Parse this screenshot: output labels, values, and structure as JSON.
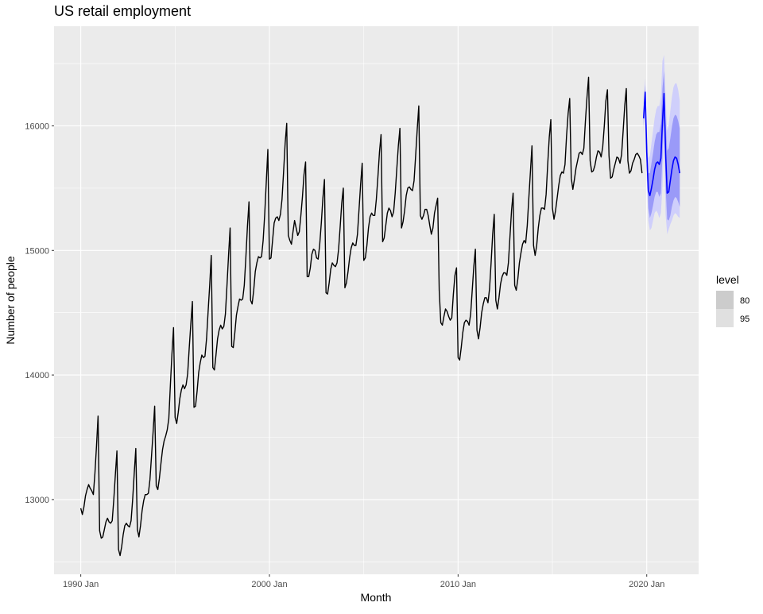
{
  "chart_data": {
    "type": "line",
    "title": "US retail employment",
    "xlabel": "Month",
    "ylabel": "Number of people",
    "x_range": [
      "1988-08",
      "2022-10"
    ],
    "ylim": [
      12400,
      16800
    ],
    "x_ticks": [
      "1990 Jan",
      "2000 Jan",
      "2010 Jan",
      "2020 Jan"
    ],
    "y_ticks": [
      13000,
      14000,
      15000,
      16000
    ],
    "grid": true,
    "legend": {
      "title": "level",
      "position": "right",
      "entries": [
        {
          "label": "80",
          "color": "#cccccc"
        },
        {
          "label": "95",
          "color": "#e0e0e0"
        }
      ]
    },
    "colors": {
      "panel": "#ebebeb",
      "grid": "#ffffff",
      "history_line": "#000000",
      "forecast_line": "#0000ff",
      "interval_80": "#9a9af8",
      "interval_95": "#cfcffb"
    },
    "history_start": "1990-01",
    "series": [
      {
        "values": [
          12930,
          12880,
          12940,
          13030,
          13080,
          13120,
          13090,
          13070,
          13040,
          13210,
          13430,
          13670,
          12750,
          12690,
          12700,
          12760,
          12820,
          12850,
          12820,
          12810,
          12830,
          13000,
          13200,
          13390,
          12600,
          12550,
          12620,
          12720,
          12790,
          12810,
          12790,
          12780,
          12830,
          13000,
          13210,
          13410,
          12760,
          12700,
          12790,
          12910,
          12990,
          13040,
          13040,
          13050,
          13160,
          13350,
          13540,
          13750,
          13110,
          13080,
          13170,
          13290,
          13400,
          13470,
          13510,
          13560,
          13650,
          13920,
          14170,
          14380,
          13660,
          13610,
          13700,
          13810,
          13880,
          13920,
          13890,
          13920,
          14010,
          14220,
          14410,
          14590,
          13740,
          13750,
          13870,
          14020,
          14100,
          14160,
          14140,
          14150,
          14290,
          14510,
          14720,
          14960,
          14060,
          14040,
          14160,
          14290,
          14360,
          14400,
          14370,
          14390,
          14490,
          14720,
          14960,
          15180,
          14230,
          14220,
          14340,
          14480,
          14550,
          14610,
          14600,
          14610,
          14720,
          14940,
          15190,
          15390,
          14600,
          14570,
          14680,
          14830,
          14900,
          14950,
          14940,
          14950,
          15080,
          15290,
          15550,
          15810,
          14930,
          14940,
          15080,
          15220,
          15260,
          15270,
          15240,
          15290,
          15410,
          15630,
          15860,
          16020,
          15120,
          15080,
          15050,
          15150,
          15240,
          15180,
          15120,
          15150,
          15280,
          15430,
          15610,
          15710,
          14790,
          14790,
          14860,
          14970,
          15010,
          15000,
          14940,
          14930,
          15050,
          15220,
          15420,
          15570,
          14660,
          14650,
          14740,
          14850,
          14900,
          14880,
          14870,
          14900,
          15010,
          15190,
          15380,
          15500,
          14700,
          14740,
          14830,
          14940,
          15020,
          15060,
          15040,
          15040,
          15130,
          15330,
          15530,
          15700,
          14920,
          14940,
          15040,
          15180,
          15270,
          15300,
          15280,
          15280,
          15410,
          15590,
          15790,
          15930,
          15070,
          15100,
          15200,
          15300,
          15340,
          15320,
          15270,
          15310,
          15460,
          15650,
          15840,
          15980,
          15180,
          15230,
          15320,
          15440,
          15500,
          15510,
          15490,
          15480,
          15560,
          15760,
          15970,
          16160,
          15280,
          15250,
          15280,
          15330,
          15330,
          15280,
          15200,
          15130,
          15180,
          15300,
          15360,
          15420,
          14680,
          14420,
          14400,
          14470,
          14530,
          14510,
          14470,
          14440,
          14460,
          14650,
          14800,
          14860,
          14140,
          14120,
          14220,
          14340,
          14420,
          14440,
          14430,
          14400,
          14490,
          14680,
          14870,
          15010,
          14360,
          14290,
          14380,
          14500,
          14570,
          14620,
          14620,
          14580,
          14690,
          14900,
          15130,
          15290,
          14600,
          14530,
          14620,
          14730,
          14790,
          14820,
          14820,
          14800,
          14900,
          15110,
          15320,
          15460,
          14720,
          14680,
          14770,
          14900,
          14980,
          15050,
          15080,
          15060,
          15200,
          15420,
          15630,
          15840,
          15040,
          14960,
          15040,
          15180,
          15280,
          15340,
          15340,
          15330,
          15450,
          15690,
          15910,
          16050,
          15340,
          15250,
          15320,
          15420,
          15520,
          15600,
          15630,
          15620,
          15690,
          15920,
          16100,
          16220,
          15580,
          15490,
          15570,
          15660,
          15720,
          15780,
          15790,
          15770,
          15820,
          16040,
          16230,
          16390,
          15720,
          15630,
          15640,
          15680,
          15750,
          15800,
          15790,
          15750,
          15830,
          16000,
          16200,
          16290,
          15760,
          15580,
          15590,
          15650,
          15700,
          15750,
          15740,
          15700,
          15770,
          15960,
          16160,
          16300,
          15720,
          15620,
          15640,
          15700,
          15730,
          15770,
          15780,
          15760,
          15730,
          15620
        ]
      },
      {
        "start": "2019-11",
        "values": [
          16060,
          16270,
          15790,
          15480,
          15440,
          15500,
          15570,
          15650,
          15700,
          15710,
          15690,
          15740,
          16030,
          16260,
          15780,
          15460,
          15470,
          15560,
          15650,
          15720,
          15750,
          15740,
          15690,
          15620
        ],
        "interval_95_upper": [
          16180,
          16380,
          16000,
          15740,
          15760,
          15860,
          15960,
          16060,
          16130,
          16160,
          16160,
          16240,
          16520,
          16570,
          16200,
          15960,
          16010,
          16120,
          16230,
          16310,
          16340,
          16340,
          16290,
          16200
        ],
        "interval_95_lower": [
          15940,
          16160,
          15590,
          15240,
          15160,
          15180,
          15240,
          15300,
          15320,
          15300,
          15260,
          15300,
          15510,
          15900,
          15290,
          15130,
          15170,
          15210,
          15240,
          15280,
          15300,
          15290,
          15270,
          15260
        ],
        "interval_80_upper": [
          16120,
          16330,
          15900,
          15620,
          15620,
          15700,
          15780,
          15870,
          15930,
          15950,
          15950,
          16020,
          16300,
          16440,
          16050,
          15800,
          15820,
          15900,
          15990,
          16060,
          16090,
          16080,
          16040,
          15980
        ],
        "interval_80_lower": [
          16000,
          16210,
          15680,
          15340,
          15260,
          15300,
          15360,
          15430,
          15470,
          15470,
          15430,
          15460,
          15760,
          16080,
          15510,
          15250,
          15240,
          15280,
          15350,
          15400,
          15430,
          15420,
          15390,
          15350
        ]
      }
    ]
  }
}
